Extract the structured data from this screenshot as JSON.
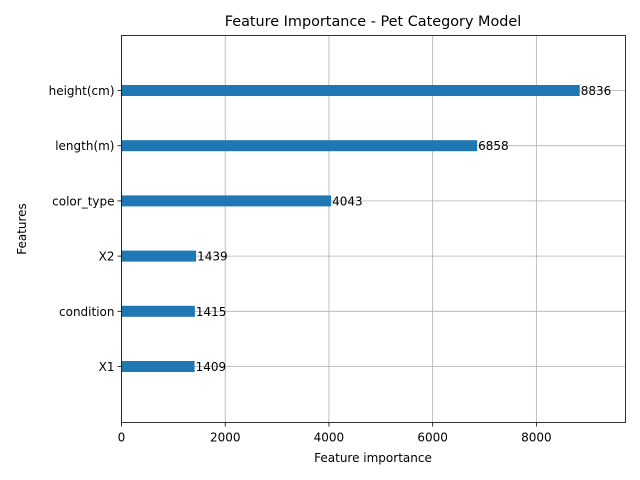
{
  "chart_data": {
    "type": "bar",
    "orientation": "horizontal",
    "title": "Feature Importance - Pet Category Model",
    "xlabel": "Feature importance",
    "ylabel": "Features",
    "categories": [
      "height(cm)",
      "length(m)",
      "color_type",
      "X2",
      "condition",
      "X1"
    ],
    "values": [
      8836,
      6858,
      4043,
      1439,
      1415,
      1409
    ],
    "data_labels": [
      "8836",
      "6858",
      "4043",
      "1439",
      "1415",
      "1409"
    ],
    "xlim": [
      0,
      9719
    ],
    "xticks": [
      0,
      2000,
      4000,
      6000,
      8000
    ],
    "xtick_labels": [
      "0",
      "2000",
      "4000",
      "6000",
      "8000"
    ],
    "grid": true,
    "bar_color": "#1f77b4"
  }
}
